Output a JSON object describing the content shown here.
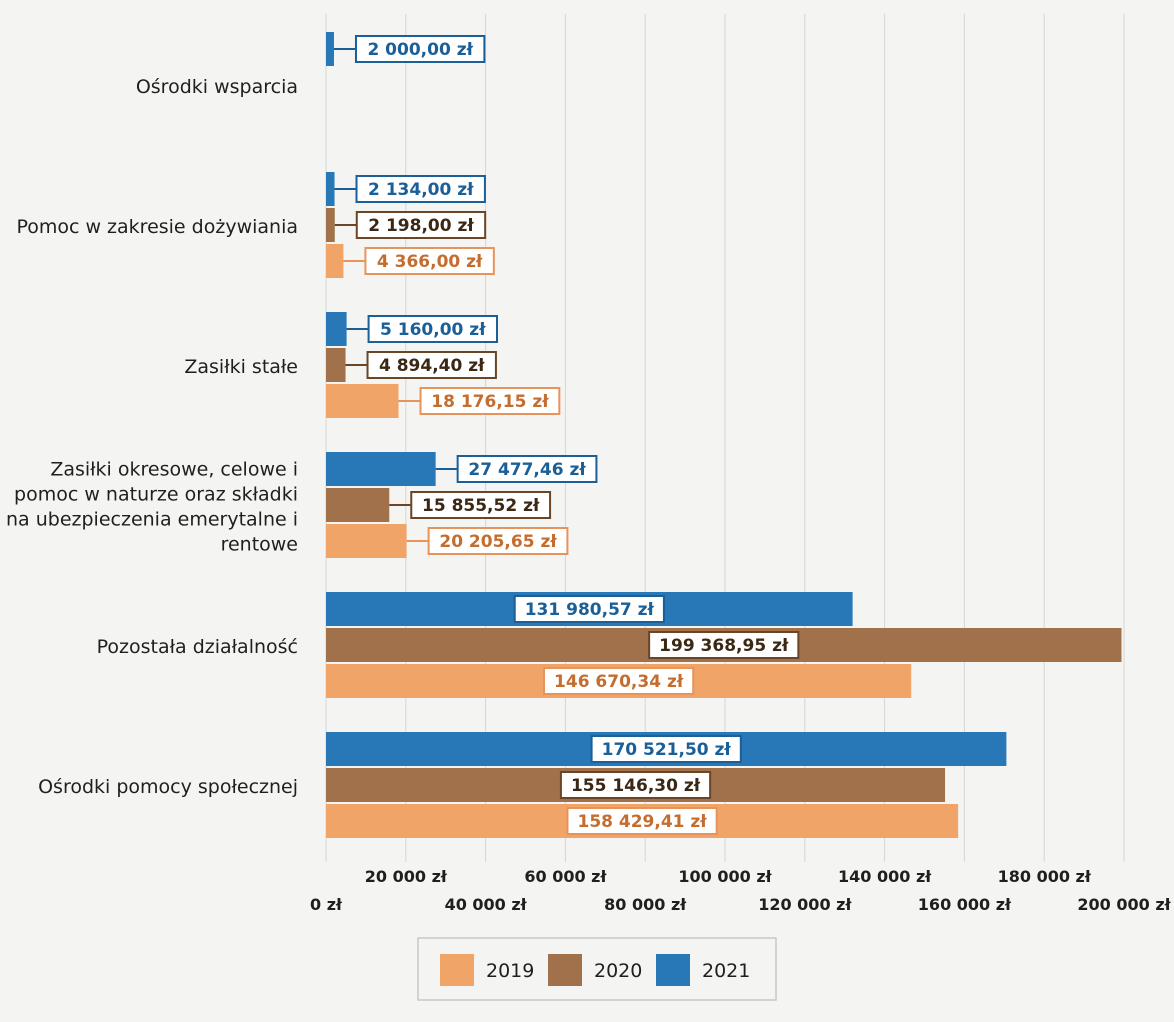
{
  "chart_data": {
    "type": "bar",
    "orientation": "horizontal",
    "categories": [
      "Ośrodki wsparcia",
      "Pomoc w zakresie dożywiania",
      "Zasiłki stałe",
      "Zasiłki okresowe, celowe i pomoc w naturze oraz składki na ubezpieczenia emerytalne i rentowe",
      "Pozostała działalność",
      "Ośrodki pomocy społecznej"
    ],
    "category_lines": [
      [
        "Ośrodki wsparcia"
      ],
      [
        "Pomoc w zakresie dożywiania"
      ],
      [
        "Zasiłki stałe"
      ],
      [
        "Zasiłki okresowe, celowe i",
        "pomoc w naturze oraz składki",
        "na ubezpieczenia emerytalne i",
        "rentowe"
      ],
      [
        "Pozostała działalność"
      ],
      [
        "Ośrodki pomocy społecznej"
      ]
    ],
    "series": [
      {
        "name": "2021",
        "color": "#2878b8",
        "values": [
          2000.0,
          2134.0,
          5160.0,
          27477.46,
          131980.57,
          170521.5
        ],
        "labels": [
          "2 000,00 zł",
          "2 134,00 zł",
          "5 160,00 zł",
          "27 477,46 zł",
          "131 980,57 zł",
          "170 521,50 zł"
        ]
      },
      {
        "name": "2020",
        "color": "#a0714a",
        "values": [
          null,
          2198.0,
          4894.4,
          15855.52,
          199368.95,
          155146.3
        ],
        "labels": [
          null,
          "2 198,00 zł",
          "4 894,40 zł",
          "15 855,52 zł",
          "199 368,95 zł",
          "155 146,30 zł"
        ]
      },
      {
        "name": "2019",
        "color": "#f0a468",
        "values": [
          null,
          4366.0,
          18176.15,
          20205.65,
          146670.34,
          158429.41
        ],
        "labels": [
          null,
          "4 366,00 zł",
          "18 176,15 zł",
          "20 205,65 zł",
          "146 670,34 zł",
          "158 429,41 zł"
        ]
      }
    ],
    "xlim": [
      0,
      200000
    ],
    "x_ticks": [
      0,
      20000,
      40000,
      60000,
      80000,
      100000,
      120000,
      140000,
      160000,
      180000,
      200000
    ],
    "x_tick_labels": [
      "0 zł",
      "20 000 zł",
      "40 000 zł",
      "60 000 zł",
      "80 000 zł",
      "100 000 zł",
      "120 000 zł",
      "140 000 zł",
      "160 000 zł",
      "180 000 zł",
      "200 000 zł"
    ],
    "legend": {
      "position": "bottom",
      "entries": [
        {
          "name": "2019",
          "color": "#f0a468"
        },
        {
          "name": "2020",
          "color": "#a0714a"
        },
        {
          "name": "2021",
          "color": "#2878b8"
        }
      ]
    },
    "grid": true
  }
}
